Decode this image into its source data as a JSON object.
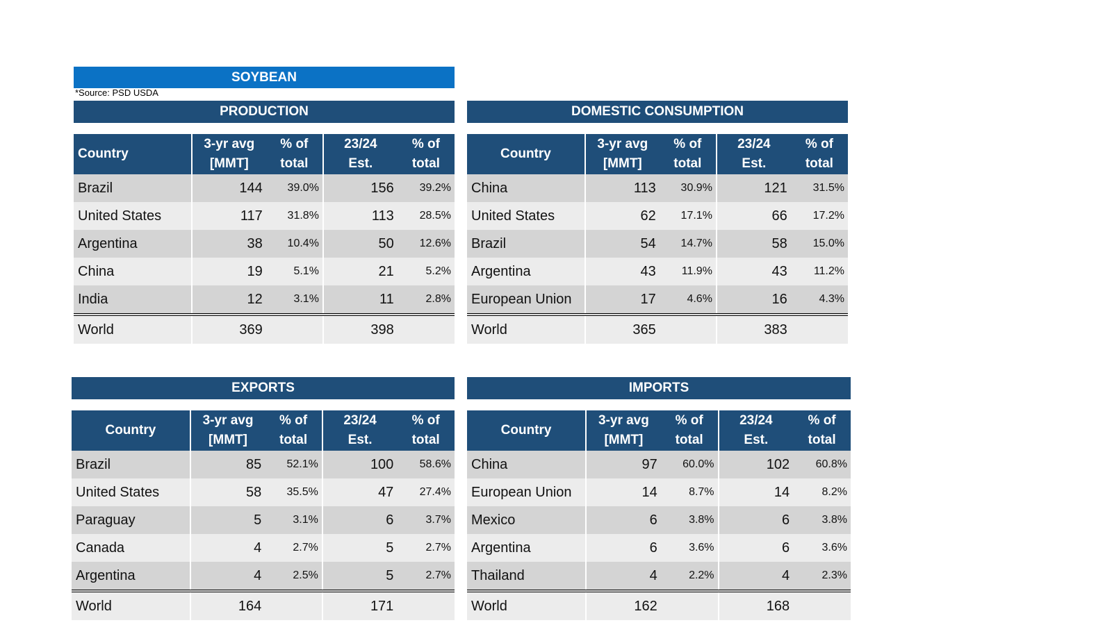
{
  "title": "SOYBEAN",
  "source_note": "*Source: PSD USDA",
  "columns": {
    "country": "Country",
    "avg_line1": "3-yr avg",
    "avg_line2": "[MMT]",
    "pct_line1": "% of",
    "pct_line2": "total",
    "est_line1": "23/24",
    "est_line2": "Est."
  },
  "production": {
    "heading": "PRODUCTION",
    "rows": [
      {
        "country": "Brazil",
        "avg": "144",
        "avg_pct": "39.0%",
        "est": "156",
        "est_pct": "39.2%"
      },
      {
        "country": "United States",
        "avg": "117",
        "avg_pct": "31.8%",
        "est": "113",
        "est_pct": "28.5%"
      },
      {
        "country": "Argentina",
        "avg": "38",
        "avg_pct": "10.4%",
        "est": "50",
        "est_pct": "12.6%"
      },
      {
        "country": "China",
        "avg": "19",
        "avg_pct": "5.1%",
        "est": "21",
        "est_pct": "5.2%"
      },
      {
        "country": "India",
        "avg": "12",
        "avg_pct": "3.1%",
        "est": "11",
        "est_pct": "2.8%"
      }
    ],
    "world": {
      "country": "World",
      "avg": "369",
      "est": "398"
    }
  },
  "consumption": {
    "heading": "DOMESTIC CONSUMPTION",
    "rows": [
      {
        "country": "China",
        "avg": "113",
        "avg_pct": "30.9%",
        "est": "121",
        "est_pct": "31.5%"
      },
      {
        "country": "United States",
        "avg": "62",
        "avg_pct": "17.1%",
        "est": "66",
        "est_pct": "17.2%"
      },
      {
        "country": "Brazil",
        "avg": "54",
        "avg_pct": "14.7%",
        "est": "58",
        "est_pct": "15.0%"
      },
      {
        "country": "Argentina",
        "avg": "43",
        "avg_pct": "11.9%",
        "est": "43",
        "est_pct": "11.2%"
      },
      {
        "country": "European Union",
        "avg": "17",
        "avg_pct": "4.6%",
        "est": "16",
        "est_pct": "4.3%"
      }
    ],
    "world": {
      "country": "World",
      "avg": "365",
      "est": "383"
    }
  },
  "exports": {
    "heading": "EXPORTS",
    "rows": [
      {
        "country": "Brazil",
        "avg": "85",
        "avg_pct": "52.1%",
        "est": "100",
        "est_pct": "58.6%"
      },
      {
        "country": "United States",
        "avg": "58",
        "avg_pct": "35.5%",
        "est": "47",
        "est_pct": "27.4%"
      },
      {
        "country": "Paraguay",
        "avg": "5",
        "avg_pct": "3.1%",
        "est": "6",
        "est_pct": "3.7%"
      },
      {
        "country": "Canada",
        "avg": "4",
        "avg_pct": "2.7%",
        "est": "5",
        "est_pct": "2.7%"
      },
      {
        "country": "Argentina",
        "avg": "4",
        "avg_pct": "2.5%",
        "est": "5",
        "est_pct": "2.7%"
      }
    ],
    "world": {
      "country": "World",
      "avg": "164",
      "est": "171"
    }
  },
  "imports": {
    "heading": "IMPORTS",
    "rows": [
      {
        "country": "China",
        "avg": "97",
        "avg_pct": "60.0%",
        "est": "102",
        "est_pct": "60.8%"
      },
      {
        "country": "European Union",
        "avg": "14",
        "avg_pct": "8.7%",
        "est": "14",
        "est_pct": "8.2%"
      },
      {
        "country": "Mexico",
        "avg": "6",
        "avg_pct": "3.8%",
        "est": "6",
        "est_pct": "3.8%"
      },
      {
        "country": "Argentina",
        "avg": "6",
        "avg_pct": "3.6%",
        "est": "6",
        "est_pct": "3.6%"
      },
      {
        "country": "Thailand",
        "avg": "4",
        "avg_pct": "2.2%",
        "est": "4",
        "est_pct": "2.3%"
      }
    ],
    "world": {
      "country": "World",
      "avg": "162",
      "est": "168"
    }
  }
}
